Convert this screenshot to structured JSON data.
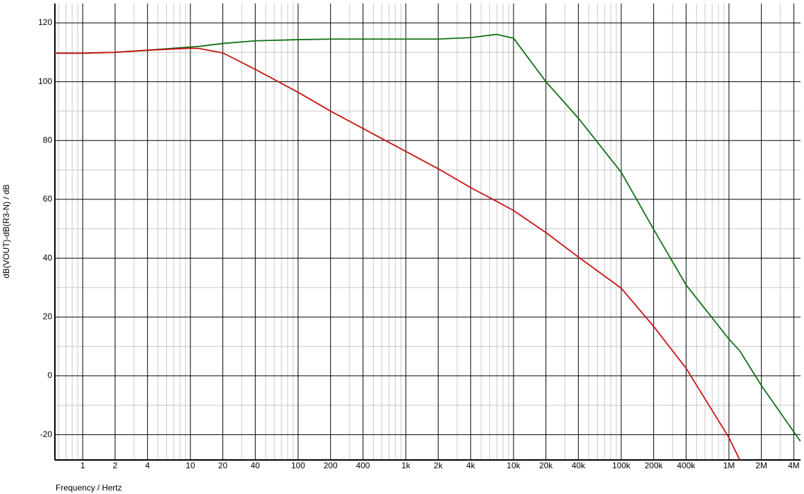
{
  "chart_data": {
    "type": "line",
    "xlabel": "Frequency / Hertz",
    "ylabel": "dB(VOUT)-dB(R3-N) / dB",
    "xscale": "log",
    "grid": true,
    "x": [
      0.55,
      1,
      2,
      4,
      10,
      12,
      20,
      40,
      100,
      200,
      400,
      1000,
      2000,
      4000,
      7000,
      10000,
      20000,
      40000,
      100000,
      200000,
      400000,
      1000000,
      1260000,
      2000000,
      4600000
    ],
    "series": [
      {
        "color": "#107010",
        "values": [
          109.7,
          109.7,
          110,
          110.7,
          111.8,
          112,
          113,
          113.9,
          114.3,
          114.5,
          114.5,
          114.5,
          114.5,
          115,
          116.1,
          114.8,
          100,
          87.6,
          69.2,
          49.8,
          30.9,
          12.5,
          8.5,
          -3.3,
          -22.2
        ]
      },
      {
        "color": "#c81010",
        "values": [
          109.7,
          109.7,
          110,
          110.7,
          111.4,
          111.3,
          109.8,
          104.2,
          96.4,
          90,
          84.1,
          76.3,
          70.4,
          64,
          59.3,
          56.2,
          48.7,
          40.4,
          29.8,
          16.8,
          2.6,
          -21,
          -28.6,
          null,
          null
        ]
      }
    ],
    "xlim": [
      0.552,
      4620000
    ],
    "ylim": [
      -28.6,
      126.6
    ],
    "xticks": [
      1,
      2,
      4,
      10,
      20,
      40,
      100,
      200,
      400,
      {
        "value": 1000,
        "label": "1k"
      },
      {
        "value": 2000,
        "label": "2k"
      },
      {
        "value": 4000,
        "label": "4k"
      },
      {
        "value": 10000,
        "label": "10k"
      },
      {
        "value": 20000,
        "label": "20k"
      },
      {
        "value": 40000,
        "label": "40k"
      },
      {
        "value": 100000,
        "label": "100k"
      },
      {
        "value": 200000,
        "label": "200k"
      },
      {
        "value": 400000,
        "label": "400k"
      },
      {
        "value": 1000000,
        "label": "1M"
      },
      {
        "value": 2000000,
        "label": "2M"
      },
      {
        "value": 4000000,
        "label": "4M"
      }
    ],
    "xminorticks": [
      0.6,
      0.7,
      0.8,
      0.9,
      3,
      5,
      6,
      7,
      8,
      9,
      30,
      50,
      60,
      70,
      80,
      90,
      300,
      500,
      600,
      700,
      800,
      900,
      3000,
      5000,
      6000,
      7000,
      8000,
      9000,
      30000,
      50000,
      60000,
      70000,
      80000,
      90000,
      300000,
      500000,
      600000,
      700000,
      800000,
      900000,
      3000000
    ],
    "yticks": [
      -20,
      0,
      20,
      40,
      60,
      80,
      100,
      120
    ],
    "yminorticks": [
      -10,
      10,
      30,
      50,
      70,
      90,
      110
    ]
  }
}
